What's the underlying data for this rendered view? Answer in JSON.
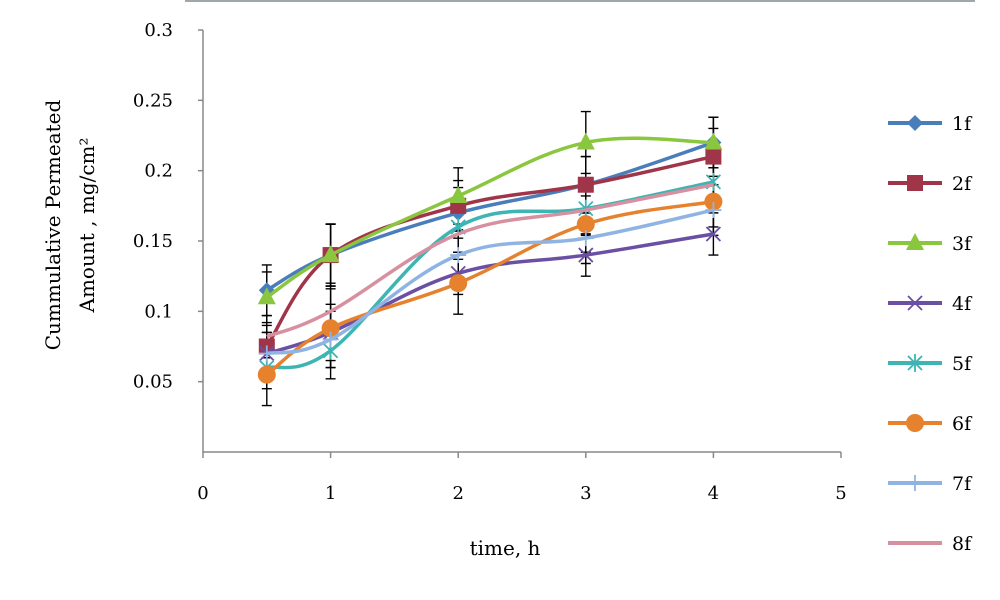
{
  "chart_data": {
    "type": "line",
    "title": "",
    "xlabel": "time, h",
    "ylabel_line1": "Cummulative Permeated",
    "ylabel_line2": "Amount , mg/cm²",
    "xlim": [
      0,
      5
    ],
    "ylim": [
      0,
      0.3
    ],
    "x_ticks": [
      0,
      1,
      2,
      3,
      4,
      5
    ],
    "y_ticks": [
      0.05,
      0.1,
      0.15,
      0.2,
      0.25,
      0.3
    ],
    "x_tick_labels": [
      "0",
      "1",
      "2",
      "3",
      "4",
      "5"
    ],
    "y_tick_labels": [
      "0.05",
      "0.1",
      "0.15",
      "0.2",
      "0.25",
      "0.3"
    ],
    "grid": false,
    "legend_position": "right",
    "x": [
      0.5,
      1,
      2,
      3,
      4
    ],
    "series": [
      {
        "name": "1f",
        "color": "#4a7ebb",
        "marker": "diamond",
        "values": [
          0.115,
          0.14,
          0.17,
          0.19,
          0.22
        ],
        "error": [
          0.018,
          0.022,
          0.018,
          0.02,
          0.018
        ]
      },
      {
        "name": "2f",
        "color": "#a0354a",
        "marker": "square",
        "values": [
          0.075,
          0.14,
          0.175,
          0.19,
          0.21
        ],
        "error": [
          0.015,
          0.022,
          0.018,
          0.02,
          0.02
        ]
      },
      {
        "name": "3f",
        "color": "#8ac63e",
        "marker": "triangle",
        "values": [
          0.11,
          0.14,
          0.182,
          0.22,
          0.22
        ],
        "error": [
          0.018,
          0.022,
          0.02,
          0.022,
          0.018
        ]
      },
      {
        "name": "4f",
        "color": "#6a4fa3",
        "marker": "x",
        "values": [
          0.07,
          0.085,
          0.127,
          0.14,
          0.155
        ],
        "error": [
          0.015,
          0.02,
          0.015,
          0.015,
          0.015
        ]
      },
      {
        "name": "5f",
        "color": "#3fb5b3",
        "marker": "star",
        "values": [
          0.06,
          0.072,
          0.16,
          0.173,
          0.192
        ],
        "error": [
          0.015,
          0.02,
          0.018,
          0.018,
          0.018
        ]
      },
      {
        "name": "6f",
        "color": "#e6822e",
        "marker": "circle",
        "values": [
          0.055,
          0.088,
          0.12,
          0.162,
          0.178
        ],
        "error": [
          0.022,
          0.028,
          0.022,
          0.02,
          0.018
        ]
      },
      {
        "name": "7f",
        "color": "#8fb4e3",
        "marker": "plus",
        "values": [
          0.07,
          0.08,
          0.14,
          0.152,
          0.172
        ],
        "error": [
          0.015,
          0.02,
          0.018,
          0.018,
          0.018
        ]
      },
      {
        "name": "8f",
        "color": "#d7909f",
        "marker": "none",
        "values": [
          0.082,
          0.1,
          0.155,
          0.172,
          0.19
        ],
        "error": [
          0.015,
          0.02,
          0.018,
          0.018,
          0.018
        ]
      }
    ]
  }
}
